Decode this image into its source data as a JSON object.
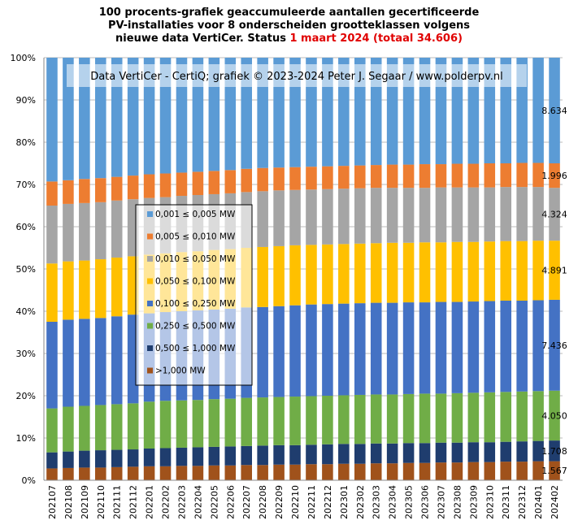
{
  "title": {
    "line1": "100 procents-grafiek geaccumuleerde aantallen gecertificeerde",
    "line2": "PV-installaties voor 8 onderscheiden grootteklassen volgens",
    "line3_prefix": "nieuwe data VertiCer. Status ",
    "line3_highlight": "1 maart 2024 (totaal 34.606)"
  },
  "watermark": "Data VertiCer - CertiQ; grafiek © 2023-2024 Peter J. Segaar / www.polderpv.nl",
  "colors": {
    "highlight": "#e00000"
  },
  "chart_data": {
    "type": "bar",
    "stacked": true,
    "percent": true,
    "ylim": [
      0,
      100
    ],
    "yticks": [
      "0%",
      "10%",
      "20%",
      "30%",
      "40%",
      "50%",
      "60%",
      "70%",
      "80%",
      "90%",
      "100%"
    ],
    "grid": true,
    "legend_placement": "left-center",
    "categories": [
      "202107",
      "202108",
      "202109",
      "202110",
      "202111",
      "202112",
      "202201",
      "202202",
      "202203",
      "202204",
      "202205",
      "202206",
      "202207",
      "202208",
      "202209",
      "202210",
      "202211",
      "202212",
      "202301",
      "202302",
      "202303",
      "202304",
      "202305",
      "202306",
      "202307",
      "202308",
      "202309",
      "202310",
      "202311",
      "202312",
      "202401",
      "202402"
    ],
    "series": [
      {
        "name": ">1,000 MW",
        "color": "#a0521b",
        "cumulative_top": [
          2.8,
          2.9,
          3.0,
          3.0,
          3.1,
          3.2,
          3.3,
          3.3,
          3.4,
          3.4,
          3.5,
          3.5,
          3.6,
          3.6,
          3.7,
          3.7,
          3.8,
          3.8,
          3.9,
          3.9,
          4.0,
          4.0,
          4.1,
          4.1,
          4.2,
          4.2,
          4.3,
          4.3,
          4.4,
          4.4,
          4.5,
          4.5
        ],
        "final_label": "1.567"
      },
      {
        "name": "0,500 ≤  1,000 MW",
        "color": "#1f3d6e",
        "cumulative_top": [
          6.6,
          6.8,
          7.0,
          7.1,
          7.2,
          7.3,
          7.5,
          7.6,
          7.7,
          7.8,
          7.9,
          8.0,
          8.1,
          8.2,
          8.3,
          8.3,
          8.4,
          8.5,
          8.6,
          8.6,
          8.7,
          8.7,
          8.8,
          8.8,
          8.9,
          8.9,
          9.0,
          9.0,
          9.1,
          9.2,
          9.3,
          9.4
        ],
        "final_label": "1.708"
      },
      {
        "name": "0,250 ≤  0,500 MW",
        "color": "#70ad47",
        "cumulative_top": [
          17.0,
          17.4,
          17.6,
          17.8,
          18.0,
          18.2,
          18.6,
          18.8,
          18.9,
          19.0,
          19.2,
          19.3,
          19.5,
          19.6,
          19.7,
          19.8,
          19.9,
          20.0,
          20.1,
          20.2,
          20.3,
          20.3,
          20.4,
          20.5,
          20.5,
          20.6,
          20.7,
          20.8,
          20.9,
          21.0,
          21.1,
          21.2
        ],
        "final_label": "4.050"
      },
      {
        "name": "0,100 ≤  0,250 MW",
        "color": "#4472c4",
        "cumulative_top": [
          37.5,
          38.0,
          38.2,
          38.4,
          38.8,
          39.2,
          39.5,
          39.8,
          40.0,
          40.2,
          40.4,
          40.6,
          40.9,
          41.0,
          41.2,
          41.4,
          41.6,
          41.7,
          41.8,
          41.9,
          42.0,
          42.0,
          42.1,
          42.1,
          42.2,
          42.2,
          42.3,
          42.4,
          42.5,
          42.5,
          42.6,
          42.7
        ],
        "final_label": "7.436"
      },
      {
        "name": "0,050 ≤  0,100 MW",
        "color": "#ffc000",
        "cumulative_top": [
          51.3,
          51.8,
          52.0,
          52.3,
          52.7,
          53.0,
          53.4,
          53.7,
          54.0,
          54.2,
          54.5,
          54.7,
          55.0,
          55.2,
          55.4,
          55.6,
          55.7,
          55.8,
          55.9,
          56.0,
          56.1,
          56.2,
          56.2,
          56.3,
          56.3,
          56.4,
          56.4,
          56.5,
          56.6,
          56.6,
          56.7,
          56.7
        ],
        "final_label": "4.891"
      },
      {
        "name": "0,010 ≤  0,050 MW",
        "color": "#a5a5a5",
        "cumulative_top": [
          65.0,
          65.4,
          65.6,
          65.8,
          66.2,
          66.5,
          66.8,
          67.0,
          67.3,
          67.5,
          67.7,
          67.9,
          68.2,
          68.4,
          68.6,
          68.7,
          68.8,
          68.9,
          69.0,
          69.1,
          69.2,
          69.2,
          69.2,
          69.2,
          69.3,
          69.3,
          69.3,
          69.3,
          69.4,
          69.4,
          69.4,
          69.2
        ],
        "final_label": "4.324"
      },
      {
        "name": "0,005 ≤  0,010 MW",
        "color": "#ed7d31",
        "cumulative_top": [
          70.7,
          71.0,
          71.3,
          71.5,
          71.8,
          72.1,
          72.4,
          72.6,
          72.8,
          73.0,
          73.2,
          73.4,
          73.7,
          73.9,
          74.0,
          74.1,
          74.2,
          74.3,
          74.4,
          74.5,
          74.6,
          74.7,
          74.7,
          74.8,
          74.8,
          74.9,
          74.9,
          75.0,
          75.0,
          75.1,
          75.1,
          75.0
        ],
        "final_label": "1.996"
      },
      {
        "name": "0,001 ≤  0,005 MW",
        "color": "#5b9bd5",
        "cumulative_top": [
          100,
          100,
          100,
          100,
          100,
          100,
          100,
          100,
          100,
          100,
          100,
          100,
          100,
          100,
          100,
          100,
          100,
          100,
          100,
          100,
          100,
          100,
          100,
          100,
          100,
          100,
          100,
          100,
          100,
          100,
          100,
          100
        ],
        "final_label": "8.634"
      }
    ]
  }
}
